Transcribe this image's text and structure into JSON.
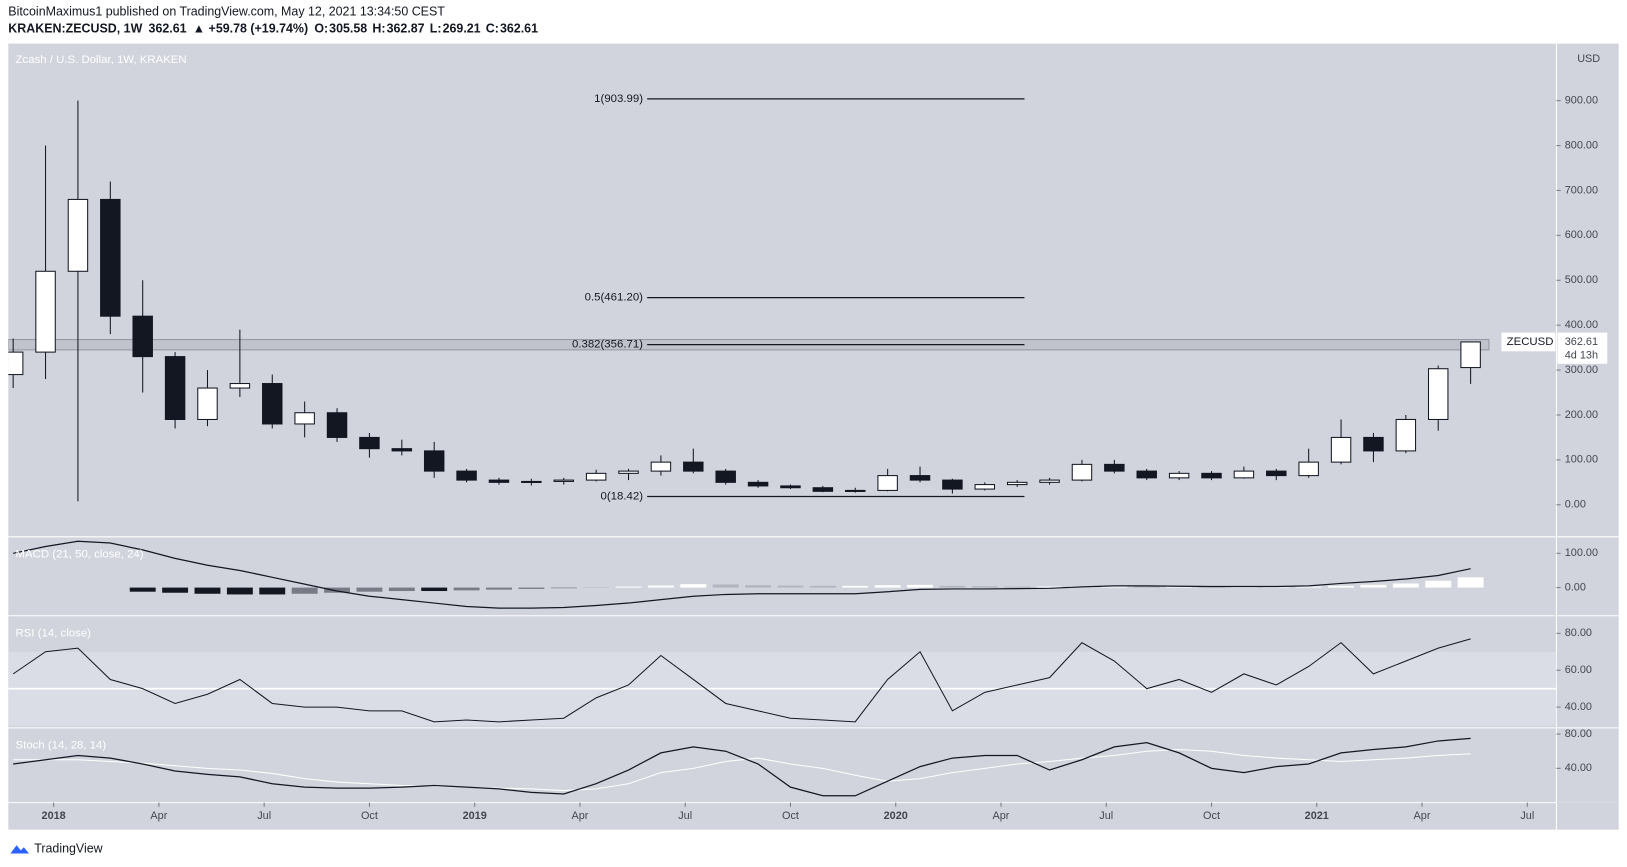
{
  "header": {
    "publisher": "BitcoinMaximus1 published on TradingView.com, May 12, 2021 13:34:50 CEST",
    "symbol": "KRAKEN:ZECUSD, 1W",
    "price": 362.61,
    "change": "▲ +59.78 (+19.74%)",
    "ohlc": [
      {
        "k": "O:",
        "v": "305.58"
      },
      {
        "k": "H:",
        "v": "362.87"
      },
      {
        "k": "L:",
        "v": "269.21"
      },
      {
        "k": "C:",
        "v": "362.61"
      }
    ]
  },
  "footer": {
    "logo": "TradingView"
  },
  "chart_data": {
    "type": "candlestick",
    "title": "Zcash / U.S. Dollar, 1W, KRAKEN",
    "currency": "USD",
    "x": [
      -5,
      -1,
      3,
      7,
      11,
      15,
      19,
      23,
      27,
      31,
      35,
      39,
      43,
      47,
      51,
      55,
      59,
      63,
      67,
      71,
      75,
      79,
      83,
      87,
      91,
      95,
      99,
      103,
      107,
      111,
      115,
      119,
      123,
      127,
      131,
      135,
      139,
      143,
      147,
      151,
      155,
      159,
      163,
      167,
      171,
      175
    ],
    "xlim": [
      -5.6,
      185.6
    ],
    "xticks": [
      {
        "value": 0,
        "label": "2018"
      },
      {
        "value": 13,
        "label": "Apr"
      },
      {
        "value": 26,
        "label": "Jul"
      },
      {
        "value": 39,
        "label": "Oct"
      },
      {
        "value": 52,
        "label": "2019"
      },
      {
        "value": 65,
        "label": "Apr"
      },
      {
        "value": 78,
        "label": "Jul"
      },
      {
        "value": 91,
        "label": "Oct"
      },
      {
        "value": 104,
        "label": "2020"
      },
      {
        "value": 117,
        "label": "Apr"
      },
      {
        "value": 130,
        "label": "Jul"
      },
      {
        "value": 143,
        "label": "Oct"
      },
      {
        "value": 156,
        "label": "2021"
      },
      {
        "value": 169,
        "label": "Apr"
      },
      {
        "value": 182,
        "label": "Jul"
      }
    ],
    "candles": {
      "open": [
        290,
        340,
        520,
        680,
        420,
        330,
        190,
        260,
        270,
        180,
        205,
        150,
        125,
        120,
        75,
        55,
        50,
        52,
        55,
        70,
        75,
        95,
        75,
        50,
        42,
        38,
        30,
        32,
        65,
        55,
        35,
        45,
        50,
        55,
        90,
        75,
        60,
        70,
        60,
        75,
        65,
        95,
        150,
        120,
        190,
        305.58
      ],
      "high": [
        370,
        800,
        900,
        720,
        500,
        340,
        300,
        390,
        290,
        230,
        215,
        160,
        145,
        140,
        80,
        60,
        58,
        60,
        78,
        80,
        110,
        125,
        80,
        55,
        45,
        42,
        38,
        80,
        85,
        58,
        50,
        55,
        60,
        100,
        100,
        80,
        75,
        75,
        85,
        80,
        125,
        190,
        160,
        200,
        310,
        362.87
      ],
      "low": [
        260,
        280,
        8,
        380,
        250,
        170,
        175,
        240,
        170,
        150,
        140,
        105,
        110,
        60,
        50,
        45,
        43,
        45,
        52,
        55,
        65,
        70,
        45,
        38,
        35,
        28,
        27,
        30,
        50,
        25,
        32,
        40,
        45,
        52,
        70,
        55,
        55,
        55,
        58,
        55,
        60,
        90,
        95,
        115,
        165,
        269.21
      ],
      "close": [
        340,
        520,
        680,
        420,
        330,
        190,
        260,
        270,
        180,
        205,
        150,
        125,
        120,
        75,
        55,
        50,
        52,
        55,
        70,
        75,
        95,
        75,
        50,
        42,
        38,
        30,
        32,
        65,
        55,
        35,
        45,
        50,
        55,
        90,
        75,
        60,
        70,
        60,
        75,
        65,
        95,
        150,
        120,
        190,
        303,
        362.61
      ],
      "up_color": "#ffffff",
      "down_color": "#131722"
    },
    "ylim": [
      -69,
      1027
    ],
    "yticks": [
      {
        "value": 0,
        "label": "0.00"
      },
      {
        "value": 100,
        "label": "100.00"
      },
      {
        "value": 200,
        "label": "200.00"
      },
      {
        "value": 300,
        "label": "300.00"
      },
      {
        "value": 400,
        "label": "400.00"
      },
      {
        "value": 500,
        "label": "500.00"
      },
      {
        "value": 600,
        "label": "600.00"
      },
      {
        "value": 700,
        "label": "700.00"
      },
      {
        "value": 800,
        "label": "800.00"
      },
      {
        "value": 900,
        "label": "900.00"
      }
    ],
    "fib": {
      "x": [
        73.3,
        119.9
      ],
      "levels": [
        {
          "label": "1(903.99)",
          "price": 903.99
        },
        {
          "label": "0.5(461.20)",
          "price": 461.2
        },
        {
          "label": "0.382(356.71)",
          "price": 356.71
        },
        {
          "label": "0(18.42)",
          "price": 18.42
        }
      ]
    },
    "resistance_zone": [
      345,
      368
    ],
    "last_tag": {
      "symbol": "ZECUSD",
      "price": 362.61,
      "countdown": "4d 13h"
    },
    "indicators": [
      {
        "type": "macd",
        "name": "MACD (21, 50, close, 24)",
        "ylim": [
          -79,
          145
        ],
        "yticks": [
          {
            "value": 0,
            "label": "0.00"
          },
          {
            "value": 100,
            "label": "100.00"
          }
        ],
        "line": [
          100,
          120,
          135,
          130,
          110,
          85,
          65,
          50,
          30,
          10,
          -10,
          -25,
          -35,
          -45,
          -55,
          -60,
          -60,
          -58,
          -52,
          -45,
          -35,
          -25,
          -20,
          -18,
          -18,
          -18,
          -18,
          -12,
          -5,
          -4,
          -4,
          -3,
          -2,
          2,
          5,
          5,
          4,
          3,
          3,
          3,
          5,
          12,
          18,
          25,
          35,
          55
        ],
        "histogram": [
          null,
          null,
          null,
          null,
          -12,
          -15,
          -18,
          -20,
          -20,
          -18,
          -15,
          -12,
          -10,
          -10,
          -8,
          -6,
          -4,
          -2,
          1,
          3,
          6,
          10,
          9,
          7,
          6,
          5,
          5,
          7,
          8,
          5,
          4,
          3,
          3,
          4,
          4,
          3,
          3,
          2,
          2,
          2,
          3,
          5,
          8,
          12,
          20,
          30
        ]
      },
      {
        "type": "rsi",
        "name": "RSI (14, close)",
        "ylim": [
          29.3,
          89
        ],
        "band": [
          30,
          70
        ],
        "midline": 50,
        "yticks": [
          {
            "value": 40,
            "label": "40.00"
          },
          {
            "value": 60,
            "label": "60.00"
          },
          {
            "value": 80,
            "label": "80.00"
          }
        ],
        "line": [
          58,
          70,
          72,
          55,
          50,
          42,
          47,
          55,
          42,
          40,
          40,
          38,
          38,
          32,
          33,
          32,
          33,
          34,
          45,
          52,
          68,
          55,
          42,
          38,
          34,
          33,
          32,
          55,
          70,
          38,
          48,
          52,
          56,
          75,
          65,
          50,
          55,
          48,
          58,
          52,
          62,
          75,
          58,
          65,
          72,
          77
        ]
      },
      {
        "type": "stoch",
        "name": "Stoch (14, 28, 14)",
        "ylim": [
          0,
          86
        ],
        "yticks": [
          {
            "value": 40,
            "label": "40.00"
          },
          {
            "value": 80,
            "label": "80.00"
          }
        ],
        "k": [
          45,
          50,
          55,
          52,
          45,
          37,
          33,
          30,
          22,
          18,
          17,
          17,
          18,
          20,
          18,
          16,
          12,
          10,
          22,
          38,
          58,
          65,
          60,
          45,
          18,
          8,
          8,
          25,
          42,
          52,
          55,
          55,
          38,
          50,
          65,
          70,
          58,
          40,
          35,
          42,
          45,
          58,
          62,
          65,
          72,
          75
        ],
        "d": [
          50,
          50,
          50,
          48,
          46,
          43,
          40,
          38,
          34,
          28,
          24,
          22,
          20,
          19,
          18,
          17,
          16,
          14,
          16,
          22,
          35,
          40,
          48,
          52,
          45,
          40,
          32,
          25,
          28,
          35,
          40,
          45,
          48,
          52,
          55,
          60,
          62,
          60,
          55,
          52,
          50,
          48,
          50,
          52,
          55,
          57
        ]
      }
    ]
  }
}
